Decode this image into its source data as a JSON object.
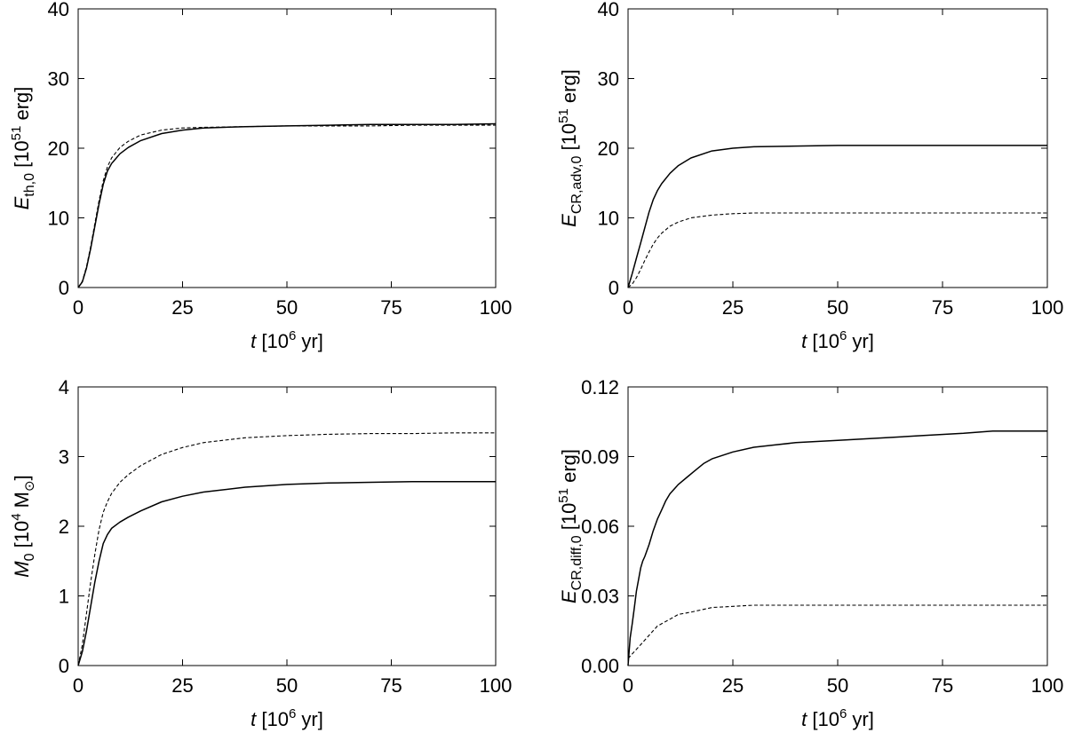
{
  "chart_data": [
    {
      "id": "e-th",
      "type": "line",
      "xlim": [
        0,
        100
      ],
      "ylim": [
        0,
        40
      ],
      "xticks": [
        0,
        25,
        50,
        75,
        100
      ],
      "yticks": [
        0,
        10,
        20,
        30,
        40
      ],
      "ytick_labels": [
        "0",
        "10",
        "20",
        "30",
        "40"
      ],
      "xlabel": {
        "sym": "t",
        "pre": " [10",
        "sup": "6",
        "post": " yr]"
      },
      "ylabel": {
        "sym": "E",
        "sub": "th,0",
        "pre": " [10",
        "sup": "51",
        "post": " erg]"
      },
      "series": [
        {
          "name": "solid",
          "style": "solid",
          "x": [
            0,
            1,
            2,
            3,
            4,
            5,
            6,
            7,
            8,
            10,
            12,
            15,
            20,
            25,
            30,
            40,
            50,
            60,
            70,
            80,
            90,
            100
          ],
          "y": [
            0,
            0.8,
            2.8,
            5.6,
            8.8,
            12.0,
            14.8,
            16.7,
            17.8,
            19.2,
            20.1,
            21.1,
            22.1,
            22.6,
            22.9,
            23.1,
            23.2,
            23.3,
            23.4,
            23.4,
            23.4,
            23.5
          ]
        },
        {
          "name": "dashed",
          "style": "dashed",
          "x": [
            0,
            1,
            2,
            3,
            4,
            5,
            6,
            7,
            8,
            10,
            12,
            15,
            20,
            25,
            30,
            40,
            50,
            60,
            70,
            80,
            90,
            100
          ],
          "y": [
            0,
            0.9,
            3.0,
            5.9,
            9.2,
            12.5,
            15.3,
            17.3,
            18.6,
            20.1,
            21.0,
            21.9,
            22.6,
            22.9,
            23.0,
            23.1,
            23.2,
            23.2,
            23.2,
            23.3,
            23.3,
            23.3
          ]
        }
      ]
    },
    {
      "id": "e-cr-adv",
      "type": "line",
      "xlim": [
        0,
        100
      ],
      "ylim": [
        0,
        40
      ],
      "xticks": [
        0,
        25,
        50,
        75,
        100
      ],
      "yticks": [
        0,
        10,
        20,
        30,
        40
      ],
      "ytick_labels": [
        "0",
        "10",
        "20",
        "30",
        "40"
      ],
      "xlabel": {
        "sym": "t",
        "pre": " [10",
        "sup": "6",
        "post": " yr]"
      },
      "ylabel": {
        "sym": "E",
        "sub": "CR,adv,0",
        "pre": " [10",
        "sup": "51",
        "post": " erg]"
      },
      "series": [
        {
          "name": "solid",
          "style": "solid",
          "x": [
            0,
            1,
            2,
            3,
            4,
            5,
            6,
            7,
            8,
            10,
            12,
            15,
            20,
            25,
            30,
            40,
            50,
            60,
            70,
            80,
            90,
            100
          ],
          "y": [
            0,
            2.0,
            4.2,
            6.4,
            8.6,
            10.8,
            12.6,
            13.9,
            14.9,
            16.4,
            17.5,
            18.6,
            19.6,
            20.0,
            20.2,
            20.3,
            20.4,
            20.4,
            20.4,
            20.4,
            20.4,
            20.4
          ]
        },
        {
          "name": "dashed",
          "style": "dashed",
          "x": [
            0,
            1,
            2,
            3,
            4,
            5,
            6,
            7,
            8,
            10,
            12,
            15,
            20,
            25,
            30,
            40,
            50,
            60,
            70,
            80,
            90,
            100
          ],
          "y": [
            0,
            0.5,
            1.4,
            2.6,
            3.9,
            5.1,
            6.2,
            7.1,
            7.8,
            8.8,
            9.4,
            10.0,
            10.4,
            10.6,
            10.7,
            10.7,
            10.7,
            10.7,
            10.7,
            10.7,
            10.7,
            10.7
          ]
        }
      ]
    },
    {
      "id": "mass",
      "type": "line",
      "xlim": [
        0,
        100
      ],
      "ylim": [
        0,
        4
      ],
      "xticks": [
        0,
        25,
        50,
        75,
        100
      ],
      "yticks": [
        0,
        1,
        2,
        3,
        4
      ],
      "ytick_labels": [
        "0",
        "1",
        "2",
        "3",
        "4"
      ],
      "xlabel": {
        "sym": "t",
        "pre": " [10",
        "sup": "6",
        "post": " yr]"
      },
      "ylabel": {
        "sym": "M",
        "sub": "0",
        "pre": " [10",
        "sup": "4",
        "post": " M",
        "sun": "⊙",
        "close": "]"
      },
      "series": [
        {
          "name": "solid",
          "style": "solid",
          "x": [
            0,
            1,
            2,
            3,
            4,
            5,
            6,
            7,
            8,
            10,
            12,
            15,
            20,
            25,
            30,
            40,
            50,
            60,
            70,
            80,
            90,
            100
          ],
          "y": [
            0,
            0.2,
            0.5,
            0.85,
            1.2,
            1.5,
            1.75,
            1.88,
            1.97,
            2.06,
            2.13,
            2.22,
            2.35,
            2.43,
            2.49,
            2.56,
            2.6,
            2.62,
            2.63,
            2.64,
            2.64,
            2.64
          ]
        },
        {
          "name": "dashed",
          "style": "dashed",
          "x": [
            0,
            1,
            2,
            3,
            4,
            5,
            6,
            7,
            8,
            10,
            12,
            15,
            20,
            25,
            30,
            40,
            50,
            60,
            70,
            80,
            90,
            100
          ],
          "y": [
            0,
            0.3,
            0.75,
            1.2,
            1.6,
            1.95,
            2.2,
            2.35,
            2.47,
            2.63,
            2.74,
            2.87,
            3.03,
            3.13,
            3.2,
            3.27,
            3.3,
            3.32,
            3.33,
            3.33,
            3.34,
            3.34
          ]
        }
      ]
    },
    {
      "id": "e-cr-diff",
      "type": "line",
      "xlim": [
        0,
        100
      ],
      "ylim": [
        0,
        0.12
      ],
      "xticks": [
        0,
        25,
        50,
        75,
        100
      ],
      "yticks": [
        0,
        0.03,
        0.06,
        0.09,
        0.12
      ],
      "ytick_labels": [
        "0.00",
        "0.03",
        "0.06",
        "0.09",
        "0.12"
      ],
      "xlabel": {
        "sym": "t",
        "pre": " [10",
        "sup": "6",
        "post": " yr]"
      },
      "ylabel": {
        "sym": "E",
        "sub": "CR,diff,0",
        "pre": " [10",
        "sup": "51",
        "post": " erg]"
      },
      "series": [
        {
          "name": "solid",
          "style": "solid",
          "x": [
            0,
            0.5,
            1,
            1.5,
            2,
            2.5,
            3,
            3.5,
            4,
            5,
            6,
            7,
            8,
            9,
            10,
            12,
            14,
            16,
            18,
            20,
            25,
            30,
            35,
            40,
            50,
            60,
            70,
            80,
            87,
            90,
            100
          ],
          "y": [
            0,
            0.012,
            0.018,
            0.025,
            0.032,
            0.037,
            0.042,
            0.045,
            0.047,
            0.052,
            0.058,
            0.063,
            0.067,
            0.071,
            0.074,
            0.078,
            0.081,
            0.084,
            0.087,
            0.089,
            0.092,
            0.094,
            0.095,
            0.096,
            0.097,
            0.098,
            0.099,
            0.1,
            0.101,
            0.101,
            0.101
          ]
        },
        {
          "name": "dashed",
          "style": "dashed",
          "x": [
            0,
            1,
            2,
            3,
            4,
            5,
            6,
            7,
            8,
            10,
            12,
            15,
            20,
            25,
            30,
            40,
            50,
            60,
            70,
            80,
            90,
            100
          ],
          "y": [
            0.003,
            0.005,
            0.007,
            0.009,
            0.011,
            0.013,
            0.015,
            0.017,
            0.018,
            0.02,
            0.022,
            0.023,
            0.025,
            0.0255,
            0.026,
            0.026,
            0.026,
            0.026,
            0.026,
            0.026,
            0.026,
            0.026
          ]
        }
      ]
    }
  ]
}
